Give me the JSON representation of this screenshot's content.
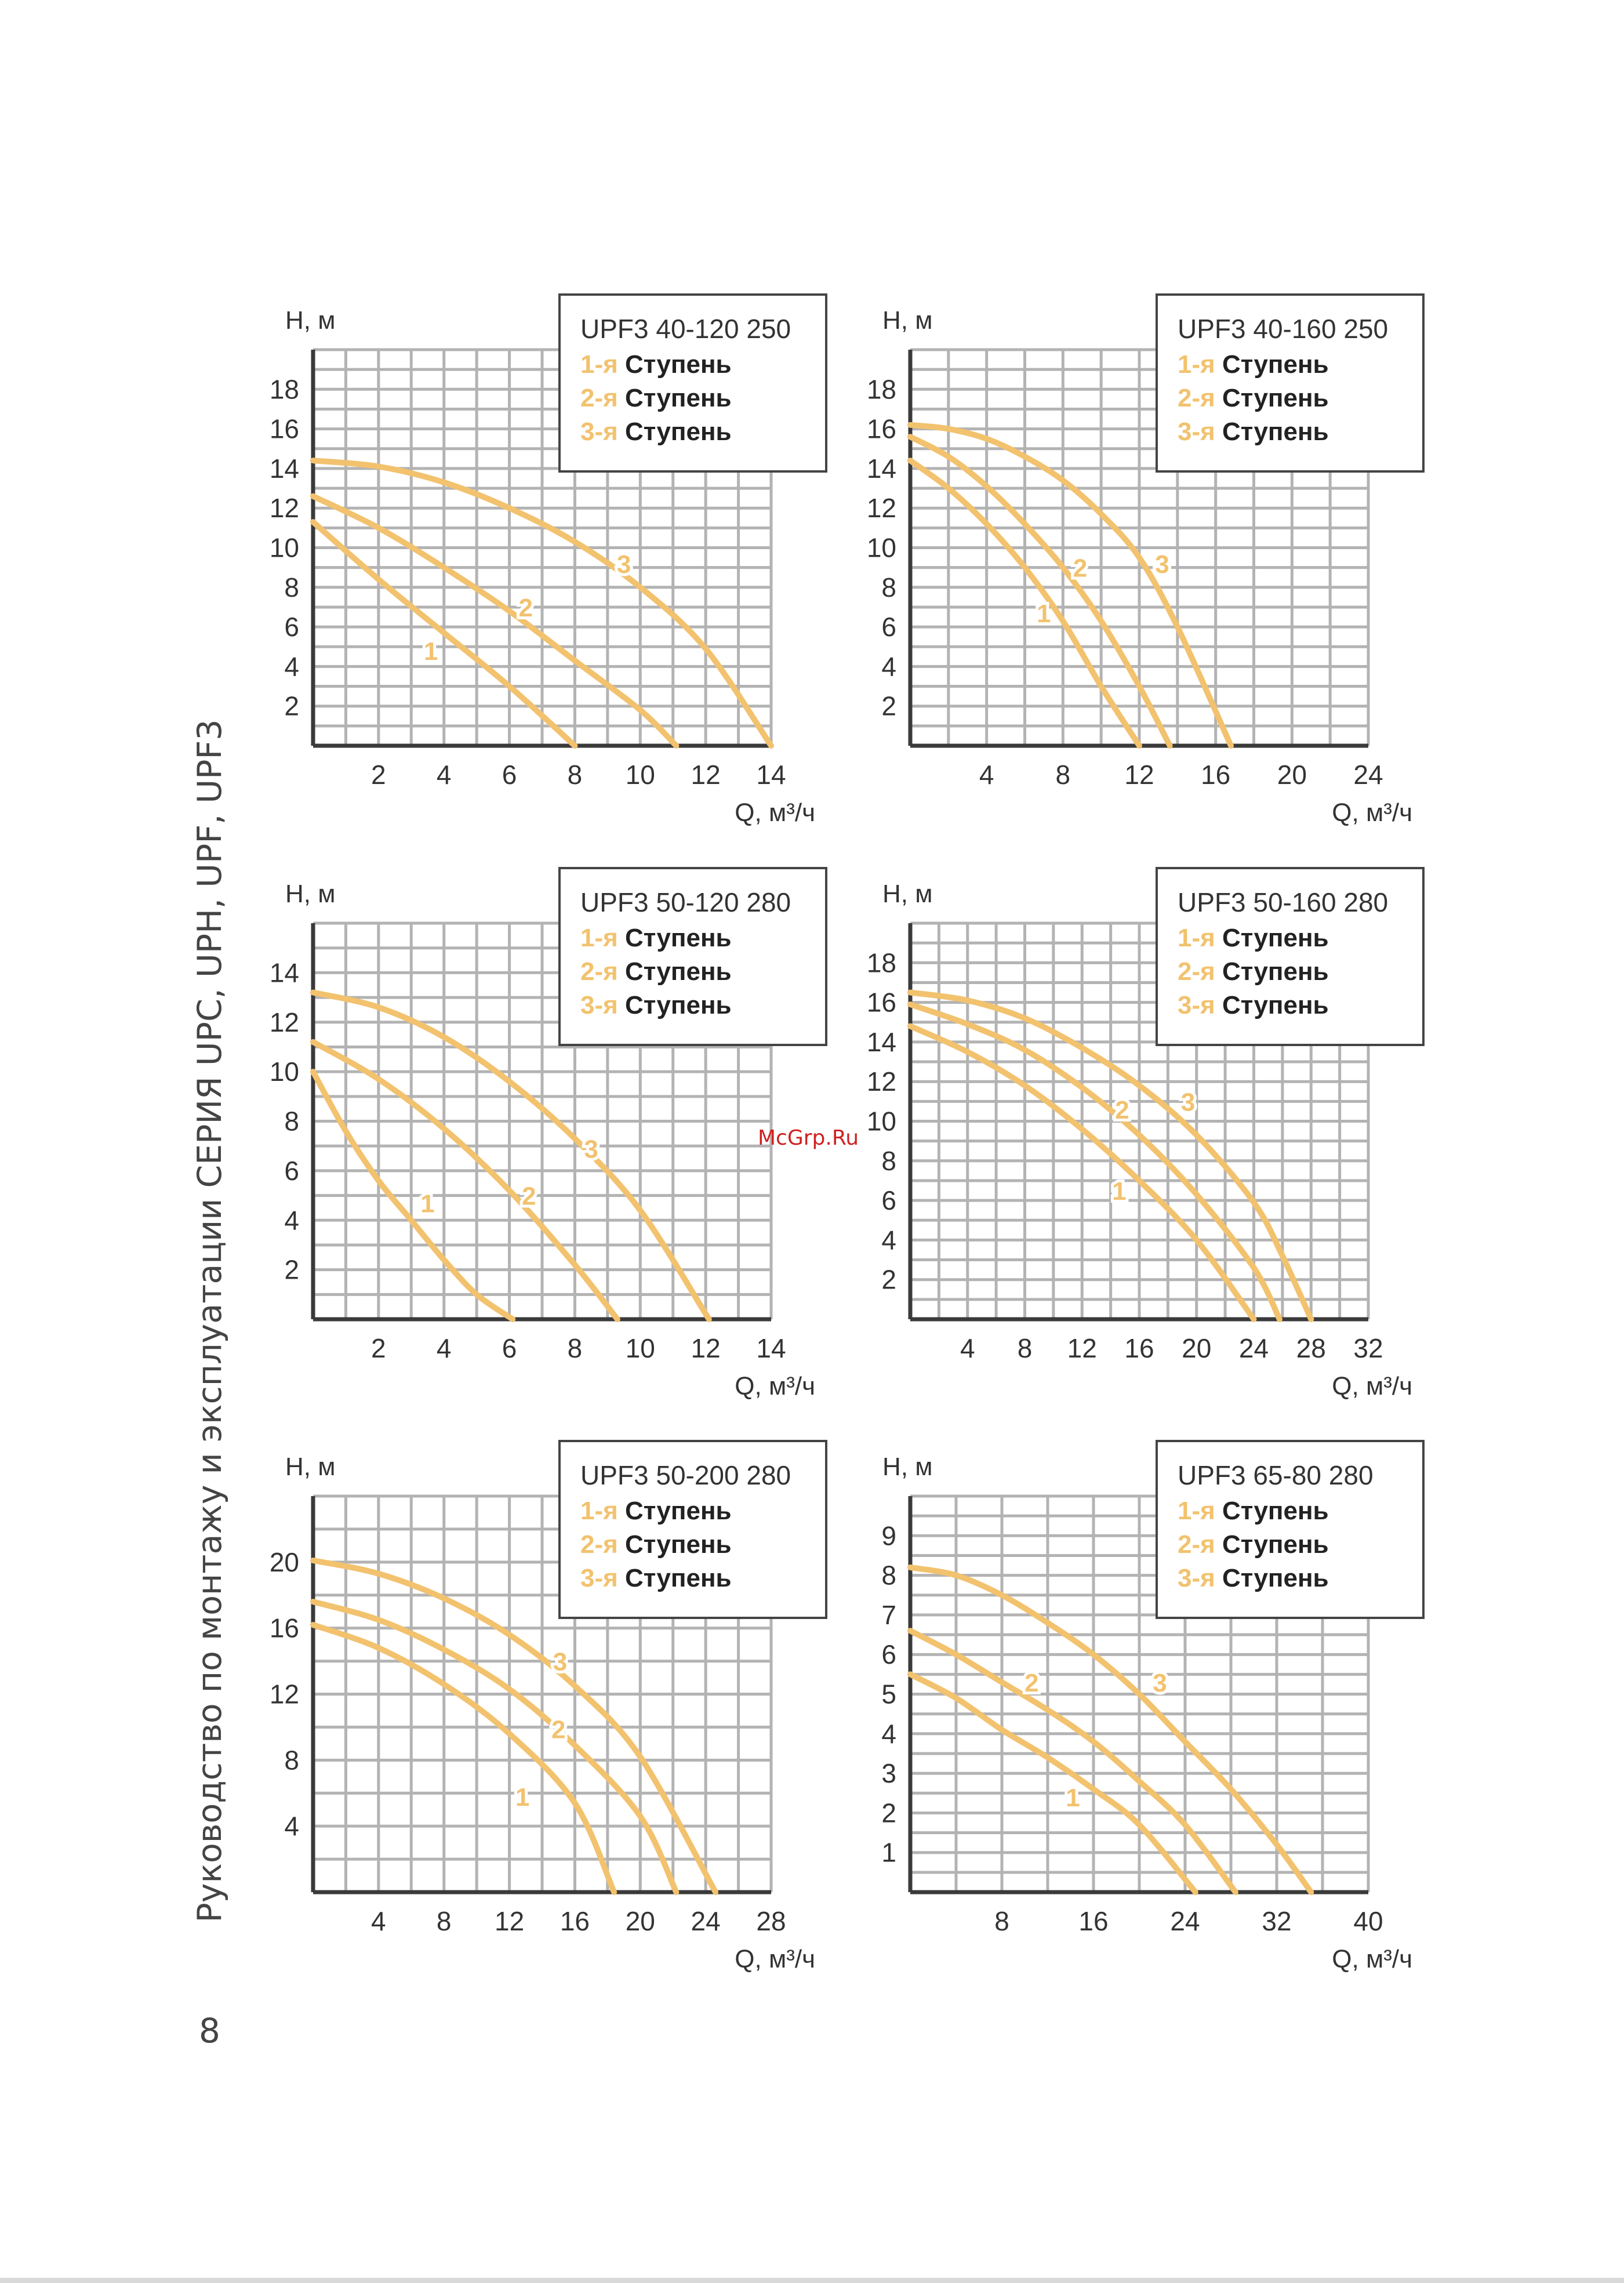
{
  "page": {
    "side_title": "Руководство по монтажу и эксплуатации СЕРИЯ UPC, UPH, UPF, UPF3",
    "page_number": "8",
    "watermark": "McGrp.Ru"
  },
  "colors": {
    "curve": "#f2c26e",
    "grid": "#b3b3b3",
    "axis": "#3a3a3a",
    "text": "#333333"
  },
  "chart_data": [
    {
      "type": "line",
      "title": "UPF3 40-120 250",
      "legend": [
        {
          "num": "1-я",
          "text": "Ступень"
        },
        {
          "num": "2-я",
          "text": "Ступень"
        },
        {
          "num": "3-я",
          "text": "Ступень"
        }
      ],
      "xlabel": "Q, м³/ч",
      "ylabel": "H, м",
      "xlim": [
        0,
        14
      ],
      "ylim": [
        0,
        20
      ],
      "x_ticks": [
        2,
        4,
        6,
        8,
        10,
        12,
        14
      ],
      "y_ticks": [
        2,
        4,
        6,
        8,
        10,
        12,
        14,
        16,
        18
      ],
      "series": [
        {
          "name": "1",
          "points": [
            [
              0,
              11.3
            ],
            [
              2,
              8.4
            ],
            [
              4,
              5.7
            ],
            [
              6,
              3.0
            ],
            [
              8,
              0
            ]
          ],
          "label_at": [
            3.6,
            4.8
          ]
        },
        {
          "name": "2",
          "points": [
            [
              0,
              12.6
            ],
            [
              2,
              11.0
            ],
            [
              4,
              9.0
            ],
            [
              6,
              6.8
            ],
            [
              8,
              4.3
            ],
            [
              10,
              1.8
            ],
            [
              11.1,
              0
            ]
          ],
          "label_at": [
            6.5,
            7.0
          ]
        },
        {
          "name": "3",
          "points": [
            [
              0,
              14.4
            ],
            [
              2,
              14.1
            ],
            [
              4,
              13.3
            ],
            [
              6,
              12.0
            ],
            [
              8,
              10.3
            ],
            [
              10,
              8.0
            ],
            [
              12,
              4.9
            ],
            [
              14,
              0
            ]
          ],
          "label_at": [
            9.5,
            9.2
          ]
        }
      ]
    },
    {
      "type": "line",
      "title": "UPF3 40-160 250",
      "legend": [
        {
          "num": "1-я",
          "text": "Ступень"
        },
        {
          "num": "2-я",
          "text": "Ступень"
        },
        {
          "num": "3-я",
          "text": "Ступень"
        }
      ],
      "xlabel": "Q, м³/ч",
      "ylabel": "H, м",
      "xlim": [
        0,
        24
      ],
      "ylim": [
        0,
        20
      ],
      "x_ticks": [
        4,
        8,
        12,
        16,
        20,
        24
      ],
      "y_ticks": [
        2,
        4,
        6,
        8,
        10,
        12,
        14,
        16,
        18
      ],
      "series": [
        {
          "name": "1",
          "points": [
            [
              0,
              14.4
            ],
            [
              2,
              13.0
            ],
            [
              4,
              11.2
            ],
            [
              6,
              9.0
            ],
            [
              8,
              6.3
            ],
            [
              10,
              3.0
            ],
            [
              12,
              0
            ]
          ],
          "label_at": [
            7.0,
            6.7
          ]
        },
        {
          "name": "2",
          "points": [
            [
              0,
              15.6
            ],
            [
              2,
              14.6
            ],
            [
              4,
              13.1
            ],
            [
              6,
              11.2
            ],
            [
              8,
              9.0
            ],
            [
              10,
              6.3
            ],
            [
              12,
              3.0
            ],
            [
              13.6,
              0
            ]
          ],
          "label_at": [
            8.9,
            9.0
          ]
        },
        {
          "name": "3",
          "points": [
            [
              0,
              16.2
            ],
            [
              2,
              16.0
            ],
            [
              4,
              15.5
            ],
            [
              6,
              14.6
            ],
            [
              8,
              13.4
            ],
            [
              10,
              11.7
            ],
            [
              12,
              9.5
            ],
            [
              14,
              6.0
            ],
            [
              16.8,
              0
            ]
          ],
          "label_at": [
            13.2,
            9.2
          ]
        }
      ]
    },
    {
      "type": "line",
      "title": "UPF3 50-120 280",
      "legend": [
        {
          "num": "1-я",
          "text": "Ступень"
        },
        {
          "num": "2-я",
          "text": "Ступень"
        },
        {
          "num": "3-я",
          "text": "Ступень"
        }
      ],
      "xlabel": "Q, м³/ч",
      "ylabel": "H, м",
      "xlim": [
        0,
        14
      ],
      "ylim": [
        0,
        16
      ],
      "x_ticks": [
        2,
        4,
        6,
        8,
        10,
        12,
        14
      ],
      "y_ticks": [
        2,
        4,
        6,
        8,
        10,
        12,
        14
      ],
      "series": [
        {
          "name": "1",
          "points": [
            [
              0,
              10.0
            ],
            [
              1,
              7.6
            ],
            [
              2,
              5.6
            ],
            [
              3,
              4.0
            ],
            [
              4,
              2.4
            ],
            [
              5,
              1.0
            ],
            [
              6.1,
              0
            ]
          ],
          "label_at": [
            3.5,
            4.7
          ]
        },
        {
          "name": "2",
          "points": [
            [
              0,
              11.2
            ],
            [
              2,
              9.7
            ],
            [
              4,
              7.7
            ],
            [
              6,
              5.2
            ],
            [
              8,
              2.2
            ],
            [
              9.3,
              0
            ]
          ],
          "label_at": [
            6.6,
            5.0
          ]
        },
        {
          "name": "3",
          "points": [
            [
              0,
              13.2
            ],
            [
              2,
              12.6
            ],
            [
              4,
              11.4
            ],
            [
              6,
              9.6
            ],
            [
              8,
              7.3
            ],
            [
              10,
              4.4
            ],
            [
              12.1,
              0
            ]
          ],
          "label_at": [
            8.5,
            6.9
          ]
        }
      ]
    },
    {
      "type": "line",
      "title": "UPF3 50-160 280",
      "legend": [
        {
          "num": "1-я",
          "text": "Ступень"
        },
        {
          "num": "2-я",
          "text": "Ступень"
        },
        {
          "num": "3-я",
          "text": "Ступень"
        }
      ],
      "xlabel": "Q, м³/ч",
      "ylabel": "H, м",
      "xlim": [
        0,
        32
      ],
      "ylim": [
        0,
        20
      ],
      "x_ticks": [
        4,
        8,
        12,
        16,
        20,
        24,
        28,
        32
      ],
      "y_ticks": [
        2,
        4,
        6,
        8,
        10,
        12,
        14,
        16,
        18
      ],
      "series": [
        {
          "name": "1",
          "points": [
            [
              0,
              14.8
            ],
            [
              4,
              13.5
            ],
            [
              8,
              11.8
            ],
            [
              12,
              9.6
            ],
            [
              16,
              7.0
            ],
            [
              20,
              4.0
            ],
            [
              24,
              0
            ]
          ],
          "label_at": [
            14.6,
            6.5
          ]
        },
        {
          "name": "2",
          "points": [
            [
              0,
              15.9
            ],
            [
              4,
              14.9
            ],
            [
              8,
              13.6
            ],
            [
              12,
              11.7
            ],
            [
              16,
              9.3
            ],
            [
              20,
              6.3
            ],
            [
              24,
              2.6
            ],
            [
              25.8,
              0
            ]
          ],
          "label_at": [
            14.8,
            10.6
          ]
        },
        {
          "name": "3",
          "points": [
            [
              0,
              16.5
            ],
            [
              4,
              16.1
            ],
            [
              8,
              15.2
            ],
            [
              12,
              13.7
            ],
            [
              16,
              11.8
            ],
            [
              20,
              9.3
            ],
            [
              24,
              5.9
            ],
            [
              26,
              3.2
            ],
            [
              28,
              0
            ]
          ],
          "label_at": [
            19.4,
            11.0
          ]
        }
      ]
    },
    {
      "type": "line",
      "title": "UPF3 50-200 280",
      "legend": [
        {
          "num": "1-я",
          "text": "Ступень"
        },
        {
          "num": "2-я",
          "text": "Ступень"
        },
        {
          "num": "3-я",
          "text": "Ступень"
        }
      ],
      "xlabel": "Q, м³/ч",
      "ylabel": "H, м",
      "xlim": [
        0,
        28
      ],
      "ylim": [
        0,
        24
      ],
      "x_ticks": [
        4,
        8,
        12,
        16,
        20,
        24,
        28
      ],
      "y_ticks": [
        4,
        8,
        12,
        16,
        20
      ],
      "series": [
        {
          "name": "1",
          "points": [
            [
              0,
              16.2
            ],
            [
              4,
              14.8
            ],
            [
              8,
              12.6
            ],
            [
              12,
              9.6
            ],
            [
              16,
              5.4
            ],
            [
              18.4,
              0
            ]
          ],
          "label_at": [
            12.8,
            5.8
          ]
        },
        {
          "name": "2",
          "points": [
            [
              0,
              17.6
            ],
            [
              4,
              16.5
            ],
            [
              8,
              14.7
            ],
            [
              12,
              12.3
            ],
            [
              16,
              8.9
            ],
            [
              20,
              4.6
            ],
            [
              22.2,
              0
            ]
          ],
          "label_at": [
            15.0,
            9.9
          ]
        },
        {
          "name": "3",
          "points": [
            [
              0,
              20.1
            ],
            [
              4,
              19.3
            ],
            [
              8,
              17.8
            ],
            [
              12,
              15.6
            ],
            [
              16,
              12.5
            ],
            [
              20,
              8.2
            ],
            [
              24.6,
              0
            ]
          ],
          "label_at": [
            15.1,
            14.0
          ]
        }
      ]
    },
    {
      "type": "line",
      "title": "UPF3 65-80 280",
      "legend": [
        {
          "num": "1-я",
          "text": "Ступень"
        },
        {
          "num": "2-я",
          "text": "Ступень"
        },
        {
          "num": "3-я",
          "text": "Ступень"
        }
      ],
      "xlabel": "Q, м³/ч",
      "ylabel": "H, м",
      "xlim": [
        0,
        40
      ],
      "ylim": [
        0,
        10
      ],
      "x_ticks": [
        8,
        16,
        24,
        32,
        40
      ],
      "y_ticks": [
        1,
        2,
        3,
        4,
        5,
        6,
        7,
        8,
        9
      ],
      "series": [
        {
          "name": "1",
          "points": [
            [
              0,
              5.5
            ],
            [
              4,
              4.9
            ],
            [
              8,
              4.1
            ],
            [
              12,
              3.4
            ],
            [
              16,
              2.6
            ],
            [
              20,
              1.7
            ],
            [
              24.9,
              0
            ]
          ],
          "label_at": [
            14.2,
            2.4
          ]
        },
        {
          "name": "2",
          "points": [
            [
              0,
              6.6
            ],
            [
              4,
              6.0
            ],
            [
              8,
              5.3
            ],
            [
              12,
              4.6
            ],
            [
              16,
              3.8
            ],
            [
              20,
              2.8
            ],
            [
              24,
              1.7
            ],
            [
              28.4,
              0
            ]
          ],
          "label_at": [
            10.6,
            5.3
          ]
        },
        {
          "name": "3",
          "points": [
            [
              0,
              8.2
            ],
            [
              4,
              8.0
            ],
            [
              8,
              7.5
            ],
            [
              12,
              6.8
            ],
            [
              16,
              6.0
            ],
            [
              20,
              5.0
            ],
            [
              24,
              3.8
            ],
            [
              28,
              2.6
            ],
            [
              32,
              1.2
            ],
            [
              35,
              0
            ]
          ],
          "label_at": [
            21.8,
            5.3
          ]
        }
      ]
    }
  ]
}
